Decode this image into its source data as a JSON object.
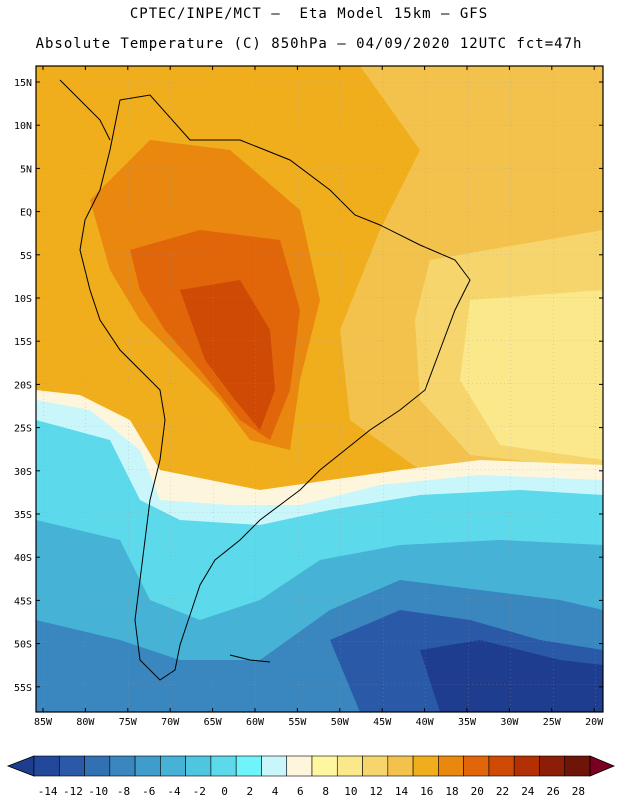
{
  "header": {
    "line1": "CPTEC/INPE/MCT –  Eta Model 15km – GFS",
    "line2": "Absolute Temperature (C) 850hPa – 04/09/2020 12UTC fct=47h"
  },
  "lat_labels": [
    "15N",
    "10N",
    "5N",
    "EQ",
    "5S",
    "10S",
    "15S",
    "20S",
    "25S",
    "30S",
    "35S",
    "40S",
    "45S",
    "50S",
    "55S"
  ],
  "lon_labels": [
    "85W",
    "80W",
    "75W",
    "70W",
    "65W",
    "60W",
    "55W",
    "50W",
    "45W",
    "40W",
    "35W",
    "30W",
    "25W",
    "20W"
  ],
  "colorbar": {
    "labels": [
      "-14",
      "-12",
      "-10",
      "-8",
      "-6",
      "-4",
      "-2",
      "0",
      "2",
      "4",
      "6",
      "8",
      "10",
      "12",
      "14",
      "16",
      "18",
      "20",
      "22",
      "24",
      "26",
      "28"
    ],
    "colors": [
      "#1f3d8f",
      "#23479a",
      "#2a59a8",
      "#3270b4",
      "#3a86bf",
      "#3f9ccb",
      "#46b2d6",
      "#4fc6e0",
      "#5cd9ea",
      "#6ff4fb",
      "#c8f6fb",
      "#fdf6dc",
      "#fff7a0",
      "#fbe88a",
      "#f6d66c",
      "#f2c24c",
      "#f0ad1c",
      "#e9870f",
      "#e16509",
      "#cf4a05",
      "#b23003",
      "#8c1d06",
      "#6e1408",
      "#7a0022"
    ]
  },
  "colors": {
    "deep_blue": "#1f3d8f",
    "mid_blue": "#3a86bf",
    "cyan": "#4fc6e0",
    "light_cyan": "#c8f6fb",
    "yellow": "#fbe88a",
    "gold": "#f2c24c",
    "orange": "#f0ad1c",
    "dark_orange": "#e16509",
    "red_brown": "#cf4a05"
  }
}
